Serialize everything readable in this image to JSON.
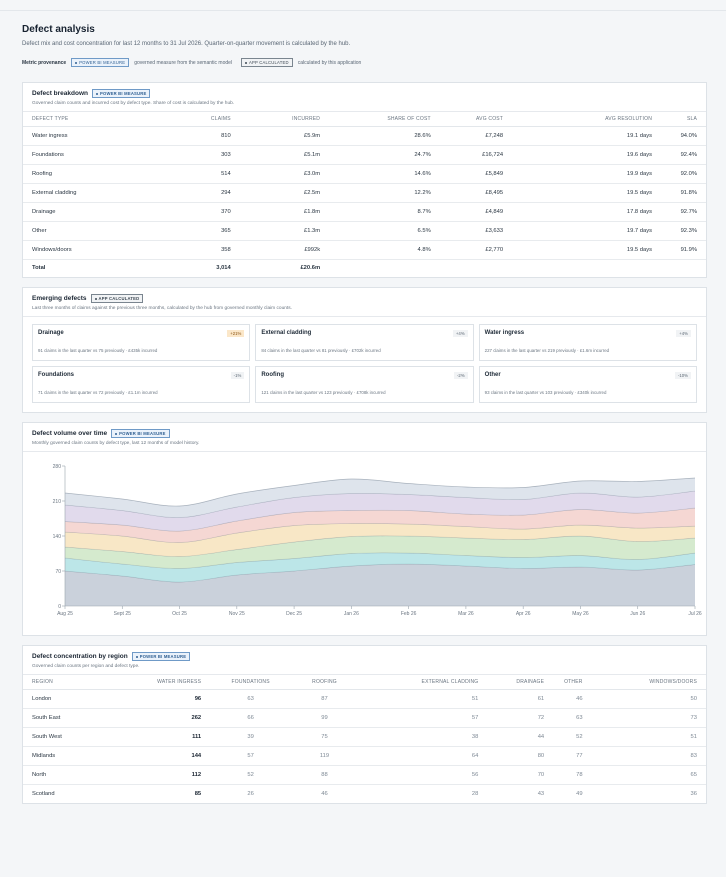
{
  "page": {
    "title": "Defect analysis",
    "subtitle": "Defect mix and cost concentration for last 12 months to 31 Jul 2026. Quarter-on-quarter movement is calculated by the hub.",
    "provenance_label": "Metric provenance",
    "badge_power_bi": "POWER BI MEASURE",
    "badge_power_bi_desc": "governed measure from the semantic model",
    "badge_app": "APP CALCULATED",
    "badge_app_desc": "calculated by this application"
  },
  "breakdown": {
    "title": "Defect breakdown",
    "badge": "POWER BI MEASURE",
    "subtitle": "Governed claim counts and incurred cost by defect type. Share of cost is calculated by the hub.",
    "columns": [
      "DEFECT TYPE",
      "CLAIMS",
      "INCURRED",
      "SHARE OF COST",
      "AVG COST",
      "AVG RESOLUTION",
      "SLA"
    ],
    "rows": [
      [
        "Water ingress",
        "810",
        "£5.9m",
        "28.6%",
        "£7,248",
        "19.1 days",
        "94.0%"
      ],
      [
        "Foundations",
        "303",
        "£5.1m",
        "24.7%",
        "£16,724",
        "19.6 days",
        "92.4%"
      ],
      [
        "Roofing",
        "514",
        "£3.0m",
        "14.6%",
        "£5,849",
        "19.9 days",
        "92.0%"
      ],
      [
        "External cladding",
        "294",
        "£2.5m",
        "12.2%",
        "£8,495",
        "19.5 days",
        "91.8%"
      ],
      [
        "Drainage",
        "370",
        "£1.8m",
        "8.7%",
        "£4,849",
        "17.8 days",
        "92.7%"
      ],
      [
        "Other",
        "365",
        "£1.3m",
        "6.5%",
        "£3,633",
        "19.7 days",
        "92.3%"
      ],
      [
        "Windows/doors",
        "358",
        "£992k",
        "4.8%",
        "£2,770",
        "19.5 days",
        "91.9%"
      ]
    ],
    "total": [
      "Total",
      "3,014",
      "£20.6m"
    ]
  },
  "emerging": {
    "title": "Emerging defects",
    "badge": "APP CALCULATED",
    "subtitle": "Last three months of claims against the previous three months, calculated by the hub from governed monthly claim counts.",
    "items": [
      {
        "name": "Drainage",
        "change": "+21%",
        "note": "91 claims in the last quarter vs 75 previously · £435k incurred"
      },
      {
        "name": "External cladding",
        "change": "+4%",
        "note": "84 claims in the last quarter vs 81 previously · £702k incurred"
      },
      {
        "name": "Water ingress",
        "change": "+4%",
        "note": "227 claims in the last quarter vs 219 previously · £1.6m incurred"
      },
      {
        "name": "Foundations",
        "change": "-1%",
        "note": "71 claims in the last quarter vs 72 previously · £1.1m incurred"
      },
      {
        "name": "Roofing",
        "change": "-2%",
        "note": "121 claims in the last quarter vs 123 previously · £708k incurred"
      },
      {
        "name": "Other",
        "change": "-10%",
        "note": "93 claims in the last quarter vs 103 previously · £340k incurred"
      }
    ]
  },
  "volume": {
    "title": "Defect volume over time",
    "badge": "POWER BI MEASURE",
    "subtitle": "Monthly governed claim counts by defect type, last 12 months of model history."
  },
  "chart_data": {
    "type": "area",
    "stacked": true,
    "x": [
      "Aug 25",
      "Sept 25",
      "Oct 25",
      "Nov 25",
      "Dec 25",
      "Jan 26",
      "Feb 26",
      "Mar 26",
      "Apr 26",
      "May 26",
      "Jun 26",
      "Jul 26"
    ],
    "yticks": [
      0,
      70,
      140,
      210,
      280
    ],
    "ylim": [
      0,
      280
    ],
    "grid": false,
    "legend": "none",
    "series": [
      {
        "color": "#b8c1cf",
        "values": [
          70,
          60,
          48,
          62,
          70,
          80,
          84,
          80,
          75,
          78,
          72,
          83
        ]
      },
      {
        "color": "#a6dde0",
        "values": [
          26,
          24,
          27,
          25,
          25,
          25,
          22,
          21,
          22,
          23,
          21,
          23
        ]
      },
      {
        "color": "#c7e3be",
        "values": [
          22,
          25,
          24,
          26,
          33,
          34,
          34,
          35,
          36,
          39,
          36,
          30
        ]
      },
      {
        "color": "#f6dfb3",
        "values": [
          30,
          31,
          28,
          33,
          33,
          26,
          24,
          23,
          21,
          22,
          27,
          24
        ]
      },
      {
        "color": "#f2c9c4",
        "values": [
          21,
          22,
          23,
          24,
          26,
          26,
          27,
          25,
          28,
          31,
          30,
          36
        ]
      },
      {
        "color": "#d7cde6",
        "values": [
          33,
          29,
          27,
          28,
          30,
          34,
          32,
          33,
          31,
          33,
          32,
          34
        ]
      },
      {
        "color": "#d3dbe5",
        "values": [
          24,
          23,
          23,
          26,
          24,
          29,
          22,
          21,
          24,
          24,
          31,
          26
        ]
      }
    ]
  },
  "region": {
    "title": "Defect concentration by region",
    "badge": "POWER BI MEASURE",
    "subtitle": "Governed claim counts per region and defect type.",
    "columns": [
      "REGION",
      "WATER INGRESS",
      "FOUNDATIONS",
      "ROOFING",
      "EXTERNAL CLADDING",
      "DRAINAGE",
      "OTHER",
      "WINDOWS/DOORS"
    ],
    "rows": [
      [
        "London",
        "96",
        "63",
        "87",
        "51",
        "61",
        "46",
        "50"
      ],
      [
        "South East",
        "262",
        "66",
        "99",
        "57",
        "72",
        "63",
        "73"
      ],
      [
        "South West",
        "111",
        "39",
        "75",
        "38",
        "44",
        "52",
        "51"
      ],
      [
        "Midlands",
        "144",
        "57",
        "119",
        "64",
        "80",
        "77",
        "83"
      ],
      [
        "North",
        "112",
        "52",
        "88",
        "56",
        "70",
        "78",
        "65"
      ],
      [
        "Scotland",
        "85",
        "26",
        "46",
        "28",
        "43",
        "49",
        "36"
      ]
    ]
  }
}
